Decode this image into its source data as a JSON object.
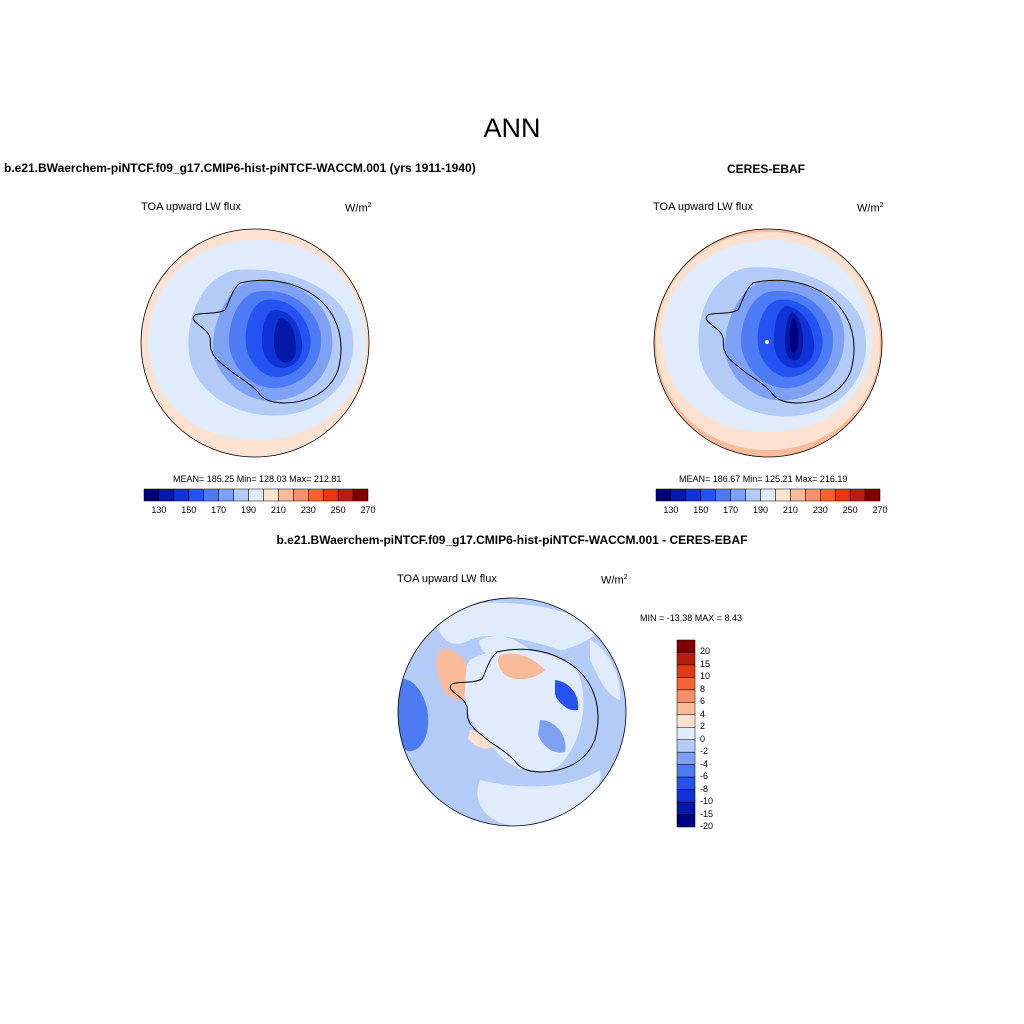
{
  "figure": {
    "title": "ANN"
  },
  "panels": {
    "left": {
      "title": "b.e21.BWaerchem-piNTCF.f09_g17.CMIP6-hist-piNTCF-WACCM.001 (yrs 1911-1940)",
      "variable": "TOA upward LW flux",
      "units_base": "W/m",
      "units_exp": "2",
      "stats": "MEAN= 185.25  Min= 128.03  Max= 212.81"
    },
    "right": {
      "title": "CERES-EBAF",
      "variable": "TOA upward LW flux",
      "units_base": "W/m",
      "units_exp": "2",
      "stats": "MEAN= 186.67  Min= 125.21  Max= 216.19"
    },
    "diff": {
      "title": "b.e21.BWaerchem-piNTCF.f09_g17.CMIP6-hist-piNTCF-WACCM.001 - CERES-EBAF",
      "variable": "TOA upward LW flux",
      "units_base": "W/m",
      "units_exp": "2",
      "stats": "MIN = -13.38 MAX =   8.43"
    }
  },
  "colorbars": {
    "abs": {
      "colors": [
        "#00007f",
        "#0519a8",
        "#1033d6",
        "#2552f0",
        "#4c7bf3",
        "#7ea1f4",
        "#b4cbf8",
        "#e0ecfc",
        "#fde2d2",
        "#f9bb9a",
        "#f69068",
        "#f26432",
        "#e33910",
        "#b71f0a",
        "#7f0000"
      ],
      "labels": [
        "130",
        "150",
        "170",
        "190",
        "210",
        "230",
        "250",
        "270"
      ]
    },
    "diff": {
      "colors": [
        "#7f0000",
        "#b71f0a",
        "#e33910",
        "#f26432",
        "#f69068",
        "#f9bb9a",
        "#fde2d2",
        "#e0ecfc",
        "#b4cbf8",
        "#7ea1f4",
        "#4c7bf3",
        "#2552f0",
        "#1033d6",
        "#0519a8",
        "#00007f"
      ],
      "labels": [
        "20",
        "15",
        "10",
        "8",
        "6",
        "4",
        "2",
        "0",
        "-2",
        "-4",
        "-6",
        "-8",
        "-10",
        "-15",
        "-20"
      ]
    }
  }
}
